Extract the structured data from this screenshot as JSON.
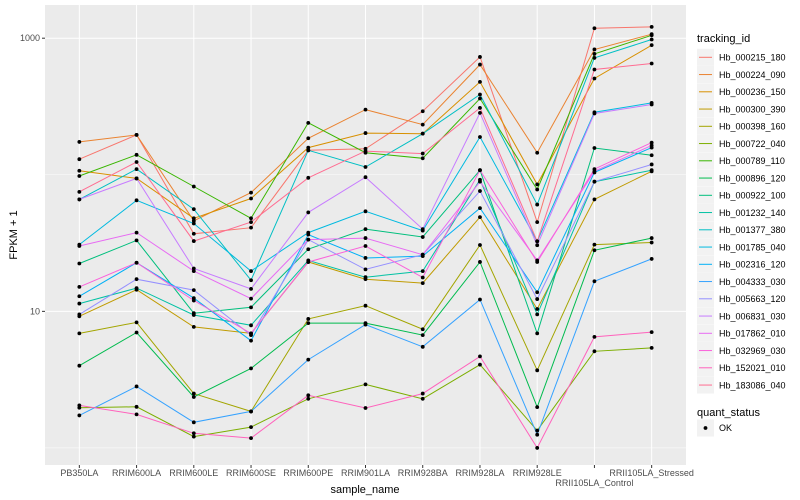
{
  "chart_data": {
    "type": "line",
    "xlabel": "sample_name",
    "ylabel": "FPKM + 1",
    "y_scale": "log10",
    "ylim": [
      0.75,
      1750
    ],
    "y_ticks": [
      10,
      1000
    ],
    "y_tick_labels": [
      "10",
      "1000"
    ],
    "y_minor_grid": [
      1,
      100
    ],
    "grid": true,
    "legend_placement": "right",
    "categories": [
      "PB350LA",
      "RRIM600LA",
      "RRIM600LE",
      "RRIM600SE",
      "RRIM600PE",
      "RRIM901LA",
      "RRIM928BA",
      "RRIM928LA",
      "RRIM928LE",
      "RRII105LA_Control",
      "RRII105LA_Stressed"
    ],
    "legend_title": "tracking_id",
    "series": [
      {
        "name": "Hb_000215_180",
        "color": "#F8766D",
        "values": [
          130,
          196,
          37,
          41,
          151,
          155,
          292,
          729,
          45,
          1183,
          1210
        ]
      },
      {
        "name": "Hb_000224_090",
        "color": "#EA8331",
        "values": [
          174,
          196,
          46,
          74,
          185,
          300,
          233,
          641,
          145,
          827,
          1070
        ]
      },
      {
        "name": "Hb_000236_150",
        "color": "#D89000",
        "values": [
          107,
          94,
          48,
          67,
          158,
          202,
          200,
          479,
          85,
          507,
          889
        ]
      },
      {
        "name": "Hb_000300_390",
        "color": "#C09B00",
        "values": [
          9.2,
          14.4,
          7.7,
          6.9,
          23,
          17.2,
          16.1,
          49,
          10.4,
          66,
          106
        ]
      },
      {
        "name": "Hb_000398_160",
        "color": "#A3A500",
        "values": [
          6.9,
          8.3,
          2.5,
          1.85,
          8.8,
          11.0,
          7.4,
          30.6,
          3.7,
          30.8,
          31.9
        ]
      },
      {
        "name": "Hb_000722_040",
        "color": "#7CAE00",
        "values": [
          1.97,
          2.0,
          1.21,
          1.42,
          2.29,
          2.92,
          2.29,
          4.07,
          1.34,
          5.1,
          5.4
        ]
      },
      {
        "name": "Hb_000789_110",
        "color": "#39B600",
        "values": [
          98,
          140,
          82,
          48,
          240,
          145,
          132,
          362,
          78,
          767,
          1050
        ]
      },
      {
        "name": "Hb_000896_120",
        "color": "#00BB4E",
        "values": [
          4.0,
          7.0,
          2.36,
          3.82,
          8.2,
          8.2,
          6.7,
          23,
          1.99,
          28,
          34.4
        ]
      },
      {
        "name": "Hb_000922_100",
        "color": "#00BF7D",
        "values": [
          22.4,
          33.1,
          9.7,
          10.7,
          28.5,
          40,
          35,
          108,
          6.9,
          157,
          139
        ]
      },
      {
        "name": "Hb_001232_140",
        "color": "#00C1A3",
        "values": [
          11.4,
          14.8,
          9.4,
          7.9,
          23.6,
          17.8,
          19.7,
          92,
          9.5,
          89,
          108
        ]
      },
      {
        "name": "Hb_001377_380",
        "color": "#00BFC4",
        "values": [
          66,
          110,
          56,
          16.9,
          151,
          114,
          200,
          387,
          60.5,
          717,
          978
        ]
      },
      {
        "name": "Hb_001785_040",
        "color": "#00BAE0",
        "values": [
          30.8,
          65,
          44,
          19.7,
          37.7,
          54,
          39,
          189,
          32.6,
          287,
          336
        ]
      },
      {
        "name": "Hb_002316_120",
        "color": "#00B0F6",
        "values": [
          12.9,
          22.7,
          12.5,
          6.1,
          36.5,
          24.6,
          25.4,
          57,
          13.8,
          104,
          158
        ]
      },
      {
        "name": "Hb_004333_030",
        "color": "#35A2FF",
        "values": [
          1.73,
          2.82,
          1.54,
          1.85,
          4.43,
          8.0,
          5.5,
          12.2,
          1.25,
          16.6,
          24.2
        ]
      },
      {
        "name": "Hb_005663_120",
        "color": "#9590FF",
        "values": [
          9.5,
          17.2,
          14.3,
          6.7,
          33.5,
          20.3,
          26,
          76,
          12.3,
          89,
          119
        ]
      },
      {
        "name": "Hb_006831_030",
        "color": "#C77CFF",
        "values": [
          66,
          94,
          20.6,
          14.6,
          53,
          96,
          40,
          284,
          30.5,
          281,
          327
        ]
      },
      {
        "name": "Hb_017862_010",
        "color": "#E76BF3",
        "values": [
          30.1,
          37.7,
          19.7,
          12.4,
          33.5,
          34.4,
          26,
          89,
          23.6,
          106,
          164
        ]
      },
      {
        "name": "Hb_032969_030",
        "color": "#FA62DB",
        "values": [
          15.1,
          22.7,
          12.0,
          6.9,
          23,
          30.1,
          17.7,
          108,
          23,
          110,
          172
        ]
      },
      {
        "name": "Hb_152021_010",
        "color": "#FF62BC",
        "values": [
          2.05,
          1.76,
          1.28,
          1.18,
          2.43,
          1.96,
          2.5,
          4.68,
          1.0,
          6.5,
          7.05
        ]
      },
      {
        "name": "Hb_183086_040",
        "color": "#FF6C91",
        "values": [
          75,
          124,
          32.7,
          45,
          95,
          149,
          143,
          309,
          32.6,
          590,
          653
        ]
      }
    ],
    "point_legend": {
      "title": "quant_status",
      "entries": [
        "OK"
      ],
      "color": "#000000"
    }
  },
  "colors": {
    "panel_background": "#EBEBEB",
    "grid": "#FFFFFF"
  }
}
